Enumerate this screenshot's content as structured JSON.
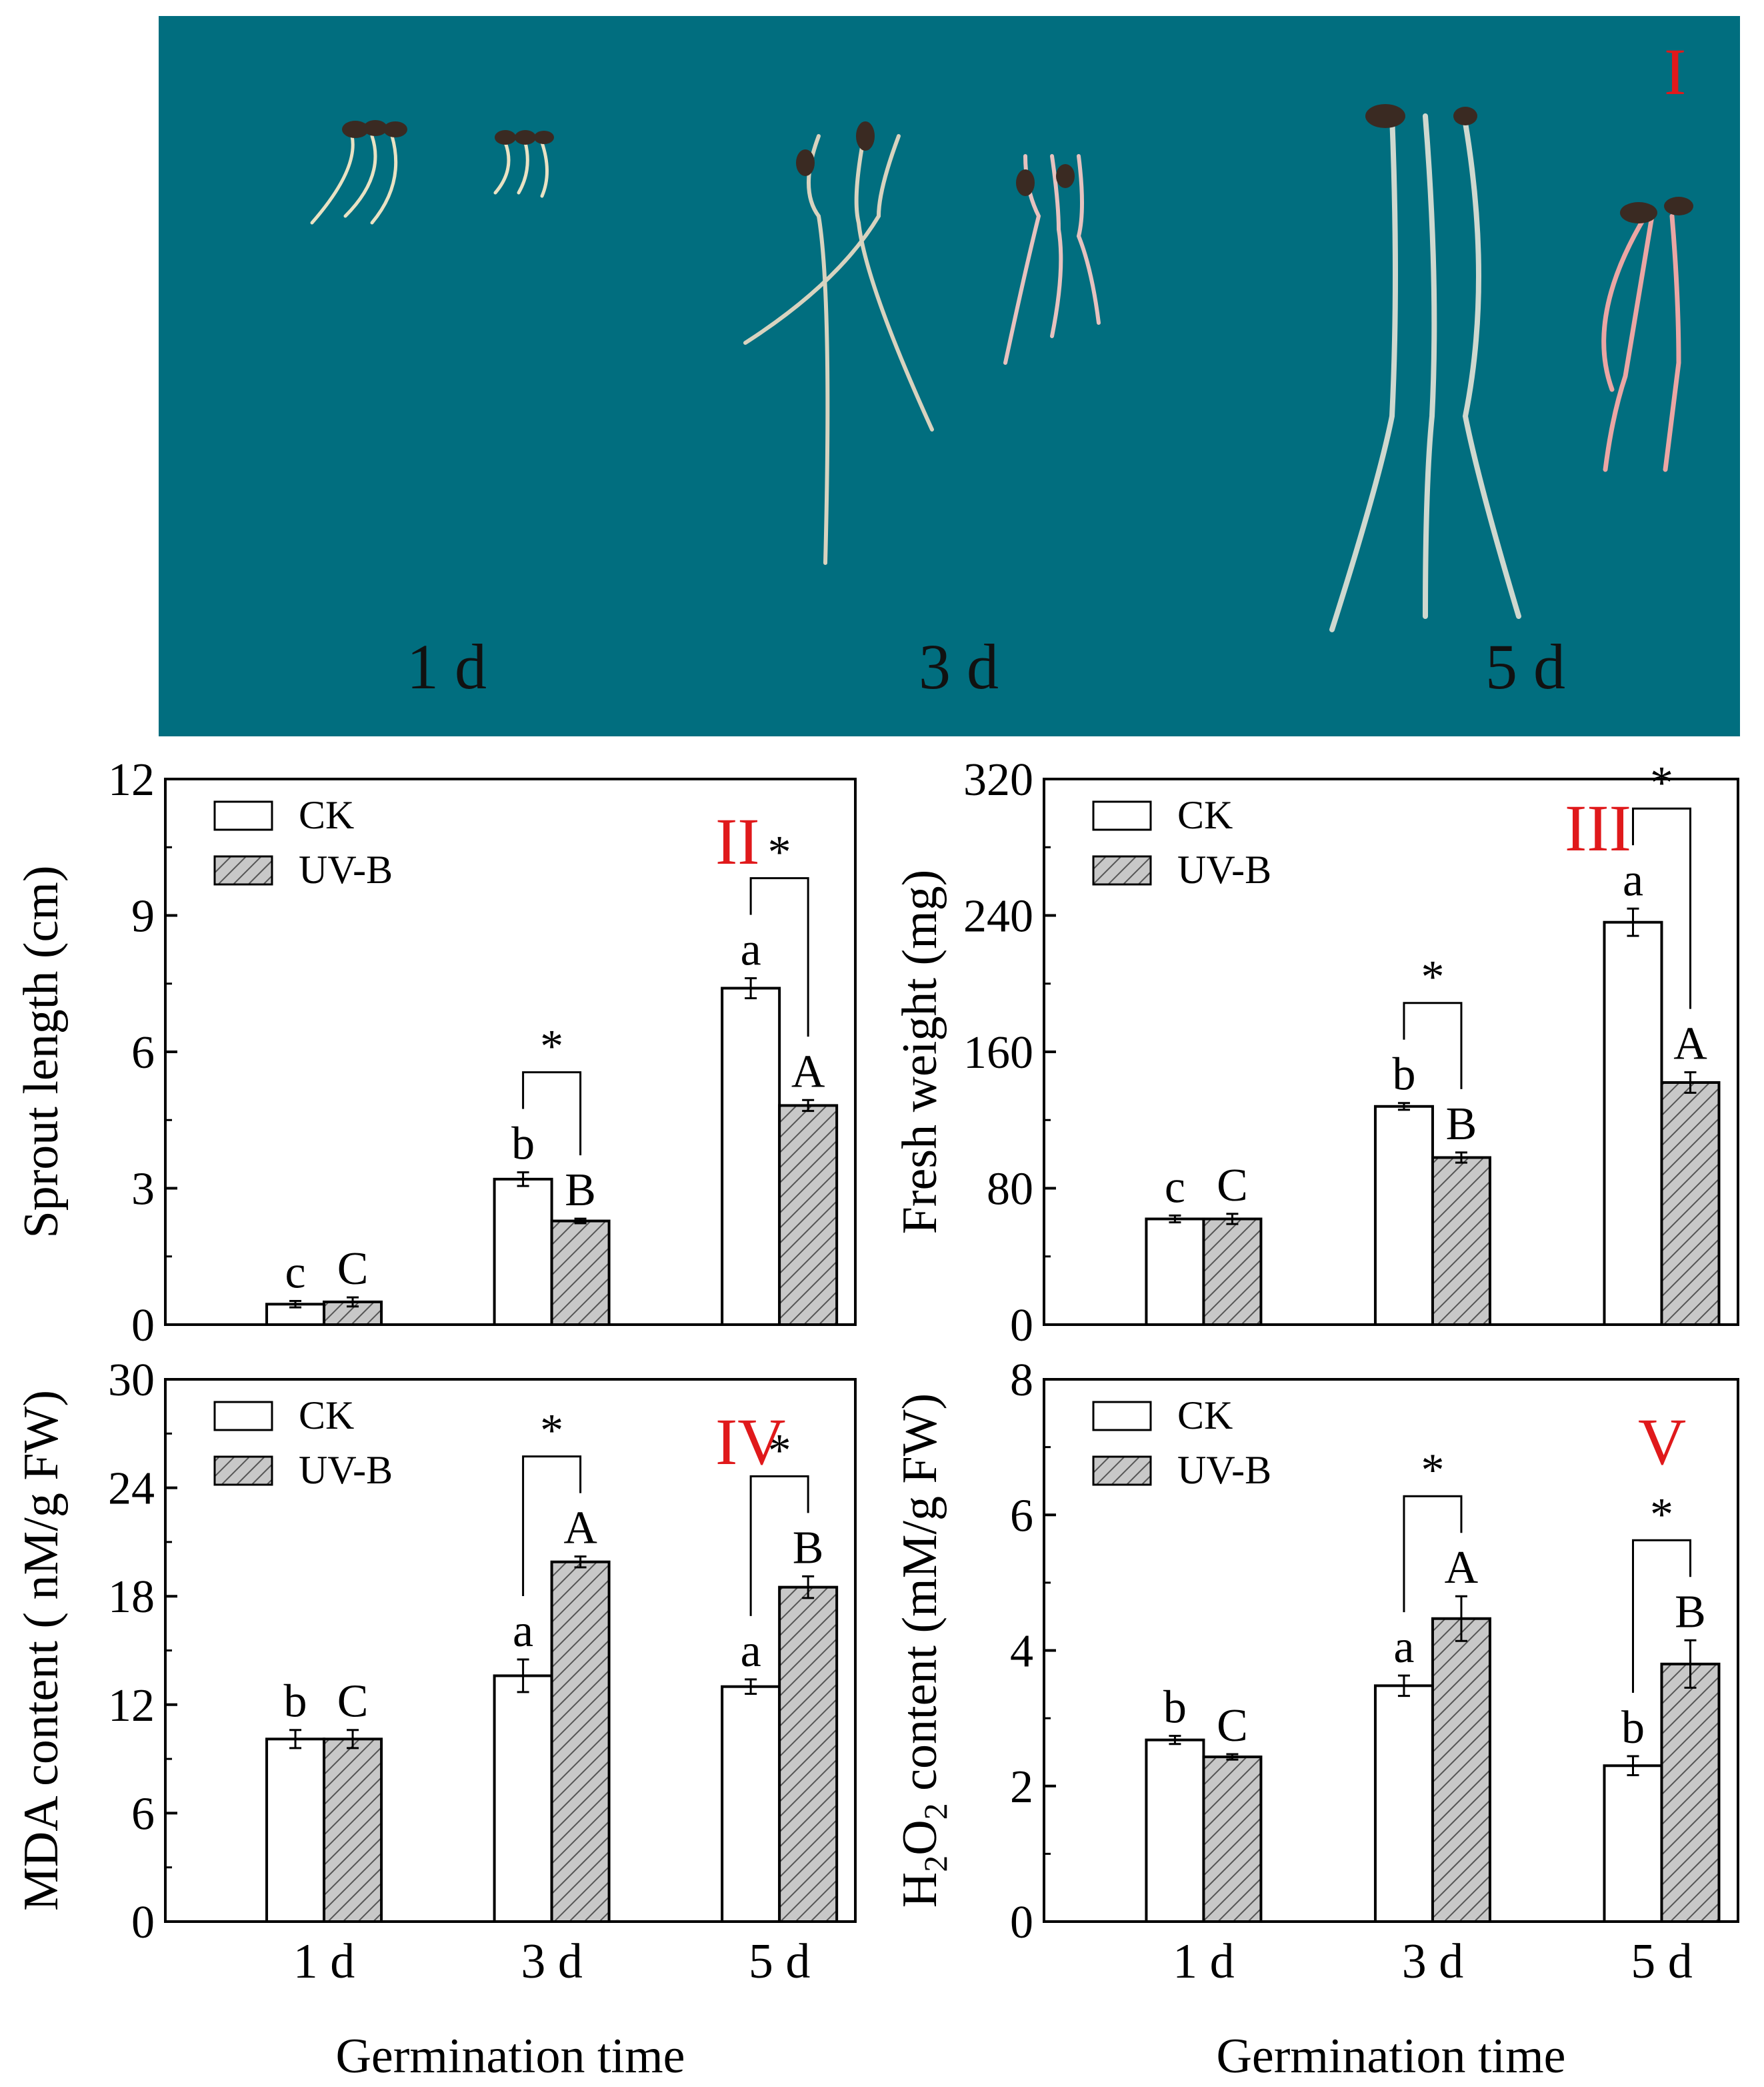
{
  "photo": {
    "tag": "I",
    "day_labels": [
      "1 d",
      "3 d",
      "5 d"
    ],
    "background_color": "#016e7f"
  },
  "colors": {
    "tag_red": "#e0191b",
    "ck_fill": "#ffffff",
    "uvb_fill": "#c8c8c8",
    "stroke": "#000000"
  },
  "chart_data": [
    {
      "type": "bar",
      "panel": "II",
      "categories": [
        "1 d",
        "3 d",
        "5 d"
      ],
      "series": [
        {
          "name": "CK",
          "values": [
            0.45,
            3.2,
            7.4
          ],
          "errors": [
            0.07,
            0.15,
            0.22
          ],
          "letters": [
            "c",
            "b",
            "a"
          ]
        },
        {
          "name": "UV-B",
          "values": [
            0.5,
            2.28,
            4.82
          ],
          "errors": [
            0.1,
            0.05,
            0.12
          ],
          "letters": [
            "C",
            "B",
            "A"
          ]
        }
      ],
      "significance": [
        "",
        "*",
        "*"
      ],
      "ylabel": "Sprout length (cm)",
      "xlabel": "",
      "ylim": [
        0,
        12
      ],
      "yticks": [
        "0",
        "3",
        "6",
        "9",
        "12"
      ],
      "legend": "top-left"
    },
    {
      "type": "bar",
      "panel": "III",
      "categories": [
        "1 d",
        "3 d",
        "5 d"
      ],
      "series": [
        {
          "name": "CK",
          "values": [
            62,
            128,
            236
          ],
          "errors": [
            2,
            2,
            8
          ],
          "letters": [
            "c",
            "b",
            "a"
          ]
        },
        {
          "name": "UV-B",
          "values": [
            62,
            98,
            142
          ],
          "errors": [
            3,
            3,
            6
          ],
          "letters": [
            "C",
            "B",
            "A"
          ]
        }
      ],
      "significance": [
        "",
        "*",
        "*"
      ],
      "ylabel": "Fresh weight (mg)",
      "xlabel": "",
      "ylim": [
        0,
        320
      ],
      "yticks": [
        "0",
        "80",
        "160",
        "240",
        "320"
      ],
      "legend": "top-left"
    },
    {
      "type": "bar",
      "panel": "IV",
      "categories": [
        "1 d",
        "3 d",
        "5 d"
      ],
      "series": [
        {
          "name": "CK",
          "values": [
            10.1,
            13.6,
            13.0
          ],
          "errors": [
            0.5,
            0.9,
            0.4
          ],
          "letters": [
            "b",
            "a",
            "a"
          ]
        },
        {
          "name": "UV-B",
          "values": [
            10.1,
            19.9,
            18.5
          ],
          "errors": [
            0.5,
            0.3,
            0.6
          ],
          "letters": [
            "C",
            "A",
            "B"
          ]
        }
      ],
      "significance": [
        "",
        "*",
        "*"
      ],
      "ylabel": "MDA content ( nM/g FW)",
      "xlabel": "Germination time",
      "ylim": [
        0,
        30
      ],
      "yticks": [
        "0",
        "6",
        "12",
        "18",
        "24",
        "30"
      ],
      "legend": "top-left"
    },
    {
      "type": "bar",
      "panel": "V",
      "categories": [
        "1 d",
        "3 d",
        "5 d"
      ],
      "series": [
        {
          "name": "CK",
          "values": [
            2.68,
            3.48,
            2.3
          ],
          "errors": [
            0.06,
            0.15,
            0.14
          ],
          "letters": [
            "b",
            "a",
            "b"
          ]
        },
        {
          "name": "UV-B",
          "values": [
            2.43,
            4.47,
            3.8
          ],
          "errors": [
            0.04,
            0.33,
            0.35
          ],
          "letters": [
            "C",
            "A",
            "B"
          ]
        }
      ],
      "significance": [
        "",
        "*",
        "*"
      ],
      "ylabel": "H2O2 content (mM/g FW)",
      "xlabel": "Germination time",
      "ylim": [
        0,
        8
      ],
      "yticks": [
        "0",
        "2",
        "4",
        "6",
        "8"
      ],
      "legend": "top-left"
    }
  ]
}
